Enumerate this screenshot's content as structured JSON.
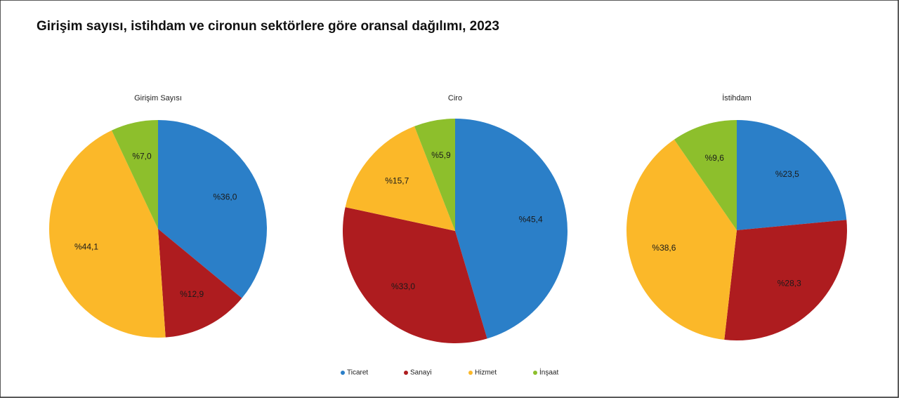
{
  "title": "Girişim sayısı, istihdam ve cironun sektörlere göre oransal dağılımı, 2023",
  "chart_data": [
    {
      "type": "pie",
      "title": "Girişim Sayısı",
      "categories": [
        "Ticaret",
        "Sanayi",
        "Hizmet",
        "İnşaat"
      ],
      "values": [
        36.0,
        12.9,
        44.1,
        7.0
      ],
      "value_labels": [
        "%36,0",
        "%12,9",
        "%44,1",
        "%7,0"
      ],
      "colors": [
        "#2b7fc8",
        "#ae1c1f",
        "#fbb829",
        "#8dbf2c"
      ]
    },
    {
      "type": "pie",
      "title": "Ciro",
      "categories": [
        "Ticaret",
        "Sanayi",
        "Hizmet",
        "İnşaat"
      ],
      "values": [
        45.4,
        33.0,
        15.7,
        5.9
      ],
      "value_labels": [
        "%45,4",
        "%33,0",
        "%15,7",
        "%5,9"
      ],
      "colors": [
        "#2b7fc8",
        "#ae1c1f",
        "#fbb829",
        "#8dbf2c"
      ]
    },
    {
      "type": "pie",
      "title": "İstihdam",
      "categories": [
        "Ticaret",
        "Sanayi",
        "Hizmet",
        "İnşaat"
      ],
      "values": [
        23.5,
        28.3,
        38.6,
        9.6
      ],
      "value_labels": [
        "%23,5",
        "%28,3",
        "%38,6",
        "%9,6"
      ],
      "colors": [
        "#2b7fc8",
        "#ae1c1f",
        "#fbb829",
        "#8dbf2c"
      ]
    }
  ]
}
